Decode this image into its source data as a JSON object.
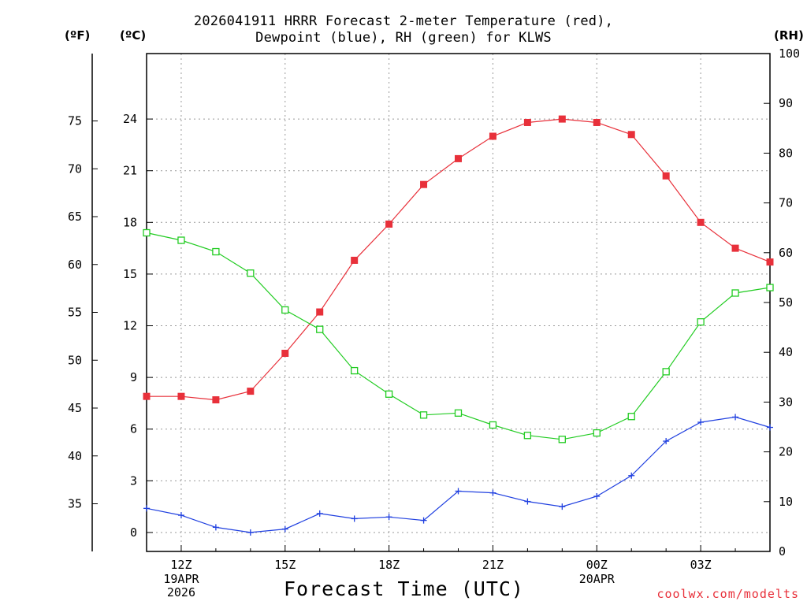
{
  "chart_data": {
    "type": "line",
    "title_line1": "2026041911 HRRR Forecast 2-meter Temperature (red),",
    "title_line2": "Dewpoint (blue), RH (green) for KLWS",
    "xlabel": "Forecast Time (UTC)",
    "credit": "coolwx.com/modelts",
    "units": {
      "fahrenheit": "(ºF)",
      "celsius": "(ºC)",
      "rh": "(RH)"
    },
    "x_hours": [
      11,
      12,
      13,
      14,
      15,
      16,
      17,
      18,
      19,
      20,
      21,
      22,
      23,
      24,
      25,
      26,
      27,
      28,
      29
    ],
    "x_tick_labels": [
      {
        "hour": 12,
        "label": "12Z"
      },
      {
        "hour": 15,
        "label": "15Z"
      },
      {
        "hour": 18,
        "label": "18Z"
      },
      {
        "hour": 21,
        "label": "21Z"
      },
      {
        "hour": 24,
        "label": "00Z"
      },
      {
        "hour": 27,
        "label": "03Z"
      }
    ],
    "date_labels": [
      {
        "hour": 12,
        "line1": "19APR",
        "line2": "2026"
      },
      {
        "hour": 24,
        "line1": "20APR",
        "line2": ""
      }
    ],
    "xlim": [
      11,
      29
    ],
    "celsius_axis": {
      "ylim": [
        -1.1,
        27.8
      ],
      "ticks": [
        0,
        3,
        6,
        9,
        12,
        15,
        18,
        21,
        24
      ]
    },
    "fahrenheit_axis": {
      "ticks": [
        35,
        40,
        45,
        50,
        55,
        60,
        65,
        70,
        75
      ]
    },
    "rh_axis": {
      "ylim": [
        0,
        100
      ],
      "ticks": [
        0,
        10,
        20,
        30,
        40,
        50,
        60,
        70,
        80,
        90,
        100
      ]
    },
    "series": [
      {
        "name": "Temperature",
        "axis": "celsius",
        "color": "#e8303a",
        "marker": "filled-square",
        "values": [
          7.9,
          7.9,
          7.7,
          8.2,
          10.4,
          12.8,
          15.8,
          17.9,
          20.2,
          21.7,
          23.0,
          23.8,
          24.0,
          23.8,
          23.1,
          20.7,
          18.0,
          16.5,
          15.7
        ]
      },
      {
        "name": "Dewpoint",
        "axis": "celsius",
        "color": "#2040e0",
        "marker": "plus",
        "values": [
          1.4,
          1.0,
          0.3,
          0.0,
          0.2,
          1.1,
          0.8,
          0.9,
          0.7,
          2.4,
          2.3,
          1.8,
          1.5,
          2.1,
          3.3,
          5.3,
          6.4,
          6.7,
          6.1
        ]
      },
      {
        "name": "RH",
        "axis": "rh",
        "color": "#22cc22",
        "marker": "open-square",
        "values": [
          64.0,
          62.5,
          60.2,
          55.9,
          48.5,
          44.6,
          36.3,
          31.6,
          27.4,
          27.8,
          25.4,
          23.3,
          22.5,
          23.8,
          27.1,
          36.1,
          46.1,
          51.9,
          53.0
        ]
      }
    ]
  }
}
